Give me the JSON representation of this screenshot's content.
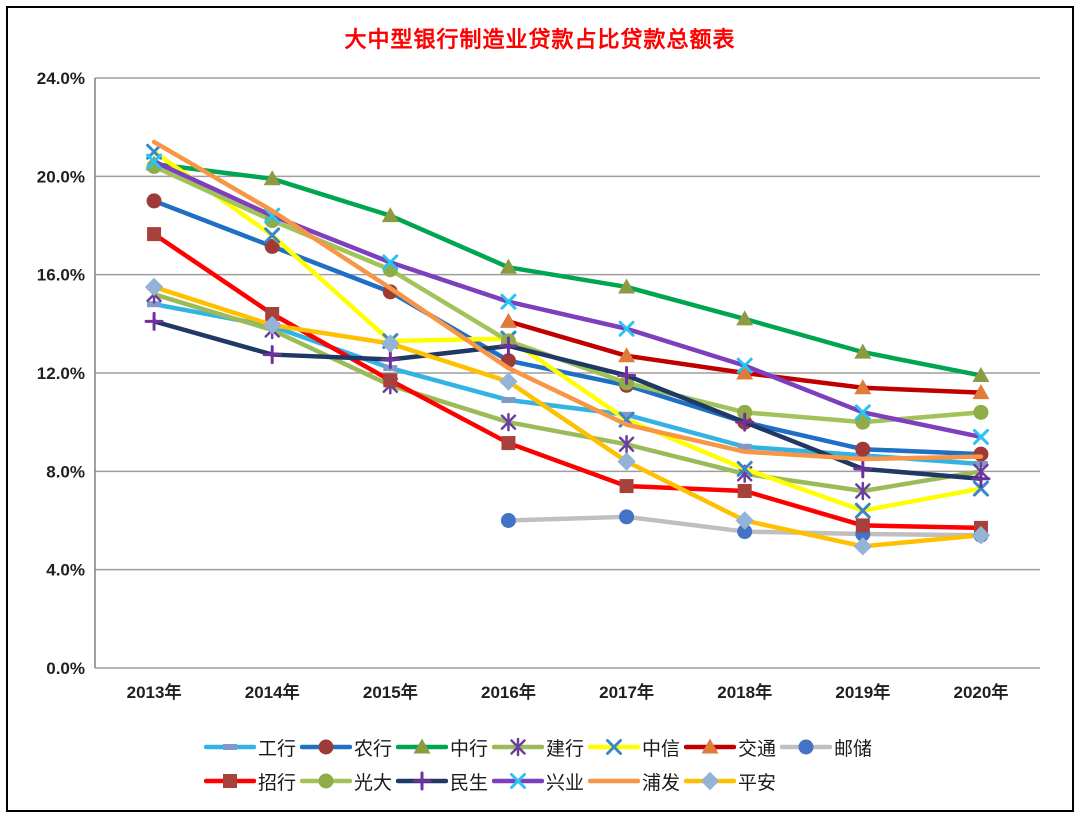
{
  "title": "大中型银行制造业贷款占比贷款总额表",
  "title_color": "#FF0000",
  "chart_data": {
    "type": "line",
    "categories": [
      "2013年",
      "2014年",
      "2015年",
      "2016年",
      "2017年",
      "2018年",
      "2019年",
      "2020年"
    ],
    "y_ticks": [
      "0.0%",
      "4.0%",
      "8.0%",
      "12.0%",
      "16.0%",
      "20.0%",
      "24.0%"
    ],
    "ylim": [
      0,
      24
    ],
    "y_tick_step": 4,
    "grid": "horizontal",
    "legend_position": "bottom",
    "legend_rows": [
      7,
      6
    ],
    "gridline_color": "#9e9e9e",
    "series": [
      {
        "key": "icbc",
        "name": "工行",
        "line_color": "#33B3E3",
        "marker": "dash",
        "marker_color": "#7F9AC9",
        "values": [
          14.8,
          13.9,
          12.2,
          10.9,
          10.3,
          9.0,
          8.65,
          8.3
        ]
      },
      {
        "key": "abc",
        "name": "农行",
        "line_color": "#1F6FC5",
        "marker": "circle",
        "marker_color": "#9E3A38",
        "values": [
          19.0,
          17.15,
          15.3,
          12.5,
          11.5,
          10.0,
          8.9,
          8.7
        ]
      },
      {
        "key": "boc",
        "name": "中行",
        "line_color": "#00A550",
        "marker": "triangle",
        "marker_color": "#8C9A41",
        "values": [
          20.5,
          19.9,
          18.4,
          16.3,
          15.5,
          14.2,
          12.85,
          11.9
        ]
      },
      {
        "key": "ccb",
        "name": "建行",
        "line_color": "#9BBB59",
        "marker": "asterisk",
        "marker_color": "#6A3FA0",
        "values": [
          15.2,
          13.75,
          11.5,
          10.0,
          9.1,
          7.9,
          7.2,
          8.0
        ]
      },
      {
        "key": "citic",
        "name": "中信",
        "line_color": "#FFFF00",
        "marker": "x",
        "marker_color": "#3A87C8",
        "values": [
          21.0,
          17.6,
          13.3,
          13.4,
          10.1,
          8.1,
          6.4,
          7.3
        ]
      },
      {
        "key": "bocom",
        "name": "交通",
        "line_color": "#C00000",
        "marker": "triangle",
        "marker_color": "#E07B39",
        "values": [
          null,
          null,
          null,
          14.1,
          12.7,
          12.0,
          11.4,
          11.2
        ]
      },
      {
        "key": "psbc",
        "name": "邮储",
        "line_color": "#BFBFBF",
        "marker": "circle",
        "marker_color": "#4472C4",
        "values": [
          null,
          null,
          null,
          6.0,
          6.15,
          5.55,
          5.45,
          5.4
        ]
      },
      {
        "key": "cmb",
        "name": "招行",
        "line_color": "#FF0000",
        "marker": "square",
        "marker_color": "#A6413C",
        "values": [
          17.65,
          14.4,
          11.7,
          9.15,
          7.4,
          7.2,
          5.8,
          5.7
        ]
      },
      {
        "key": "ceb",
        "name": "光大",
        "line_color": "#A2C25A",
        "marker": "circle",
        "marker_color": "#8FAC47",
        "values": [
          20.4,
          18.2,
          16.2,
          13.3,
          11.6,
          10.4,
          10.0,
          10.4
        ]
      },
      {
        "key": "cmbc",
        "name": "民生",
        "line_color": "#1F3864",
        "marker": "plus",
        "marker_color": "#7030A0",
        "values": [
          14.1,
          12.75,
          12.55,
          13.1,
          11.9,
          10.0,
          8.1,
          7.7
        ]
      },
      {
        "key": "cib",
        "name": "兴业",
        "line_color": "#7D3FBE",
        "marker": "x",
        "marker_color": "#29C4F0",
        "values": [
          20.6,
          18.4,
          16.5,
          14.9,
          13.8,
          12.3,
          10.4,
          9.4
        ]
      },
      {
        "key": "spdb",
        "name": "浦发",
        "line_color": "#F79646",
        "marker": "none",
        "marker_color": "#F79646",
        "values": [
          21.4,
          18.6,
          15.45,
          12.2,
          9.9,
          8.8,
          8.5,
          8.6
        ]
      },
      {
        "key": "pab",
        "name": "平安",
        "line_color": "#FFC000",
        "marker": "diamond",
        "marker_color": "#95B3D7",
        "values": [
          15.5,
          13.95,
          13.2,
          11.65,
          8.4,
          6.0,
          4.95,
          5.4
        ]
      }
    ]
  }
}
